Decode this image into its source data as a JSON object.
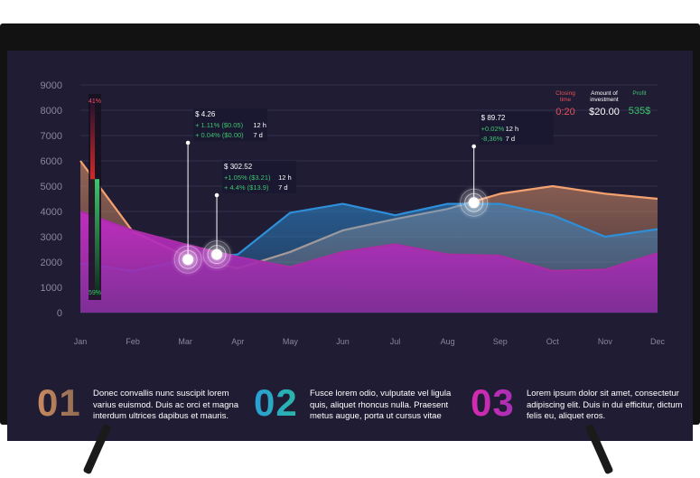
{
  "chart_data": {
    "type": "area",
    "categories": [
      "Jan",
      "Feb",
      "Mar",
      "Apr",
      "May",
      "Jun",
      "Jul",
      "Aug",
      "Sep",
      "Oct",
      "Nov",
      "Dec"
    ],
    "ylim": [
      0,
      9000
    ],
    "yticks": [
      0,
      1000,
      2000,
      3000,
      4000,
      5000,
      6000,
      7000,
      8000,
      9000
    ],
    "grid": true,
    "series": [
      {
        "name": "orange",
        "color": "#f4a170",
        "values": [
          6000,
          3200,
          2250,
          1750,
          2400,
          3250,
          3700,
          4100,
          4700,
          5000,
          4700,
          4500
        ]
      },
      {
        "name": "blue",
        "color": "#2e8fd8",
        "values": [
          1950,
          1650,
          2100,
          2300,
          3950,
          4300,
          3850,
          4300,
          4300,
          3850,
          3000,
          3300
        ]
      },
      {
        "name": "magenta",
        "color": "#a72ea4",
        "values": [
          4000,
          3250,
          2700,
          2200,
          1800,
          2400,
          2700,
          2300,
          2250,
          1650,
          1700,
          2350
        ]
      }
    ],
    "gauge": {
      "top_label": "41%",
      "bottom_label": "59%",
      "value_pct": 59
    },
    "annotations": [
      {
        "x_index": 2.05,
        "value": 2100,
        "price": "$ 4.26",
        "lines": [
          {
            "text": "+ 1.11% ($0.05)",
            "period": "12 h"
          },
          {
            "text": "+ 0.04% ($0.00)",
            "period": "7 d"
          }
        ]
      },
      {
        "x_index": 2.6,
        "value": 2300,
        "price": "$ 302.52",
        "lines": [
          {
            "text": "+1.05% ($3.21)",
            "period": "12 h"
          },
          {
            "text": "+ 4.4% ($13.9)",
            "period": "7 d"
          }
        ]
      },
      {
        "x_index": 7.5,
        "value": 4350,
        "price": "$ 89.72",
        "lines": [
          {
            "text": "+0.02%",
            "period": "12 h"
          },
          {
            "text": "-8,36%",
            "period": "7 d"
          }
        ]
      }
    ]
  },
  "stats": [
    {
      "label": "Closing\ntime",
      "value": "0:20",
      "color": "#e8505b"
    },
    {
      "label": "Amount of\ninvestment",
      "value": "$20.00",
      "color": "#ffffff"
    },
    {
      "label": "Profit",
      "value": "535$",
      "color": "#3ec46d"
    }
  ],
  "features": [
    {
      "number": "01",
      "text": "Donec convallis nunc suscipit lorem varius euismod. Duis ac orci et magna interdum ultrices dapibus et mauris.",
      "grad_from": "#c98a5f",
      "grad_to": "#8e6a52"
    },
    {
      "number": "02",
      "text": "Fusce lorem odio, vulputate vel ligula quis, aliquet rhoncus nulla. Praesent metus augue, porta ut cursus vitae",
      "grad_from": "#2a9fd6",
      "grad_to": "#2ab7a6"
    },
    {
      "number": "03",
      "text": "Lorem ipsum dolor sit amet, consectetur adipiscing elit. Duis in dui efficitur, dictum felis eu, aliquet eros.",
      "grad_from": "#d62ab0",
      "grad_to": "#a82fb8"
    }
  ]
}
